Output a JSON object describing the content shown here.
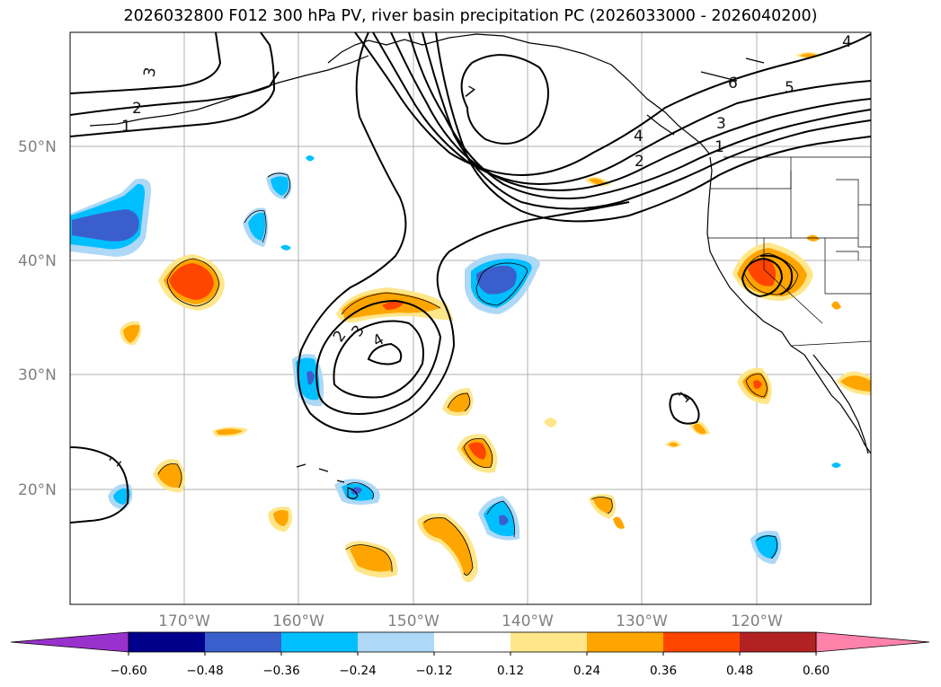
{
  "title": "2026032800 F012 300 hPa PV, river basin precipitation PC (2026033000 - 2026040200)",
  "lat_labels": [
    "50°N",
    "40°N",
    "30°N",
    "20°N"
  ],
  "lon_labels": [
    "170°W",
    "160°W",
    "150°W",
    "140°W",
    "130°W",
    "120°W"
  ],
  "colorbar": {
    "ticks": [
      "−0.60",
      "−0.48",
      "−0.36",
      "−0.24",
      "−0.12",
      "0.12",
      "0.24",
      "0.36",
      "0.48",
      "0.60"
    ],
    "colors": [
      "#9932cc",
      "#00008b",
      "#3a5fcd",
      "#00bfff",
      "#add8f6",
      "#ffffff",
      "#ffe68a",
      "#ffa500",
      "#ff4500",
      "#b22222",
      "#ff82ab"
    ]
  },
  "contour_labels": [
    "3",
    "2",
    "1",
    "7",
    "6",
    "5",
    "4",
    "3",
    "2",
    "1",
    "4",
    "2",
    "3",
    "4",
    "1",
    "1",
    "4"
  ],
  "palette": {
    "pos_light": "#ffe68a",
    "pos_mid": "#ffa500",
    "pos_strong": "#ff4500",
    "neg_pale": "#add8f6",
    "neg_light": "#00bfff",
    "neg_mid": "#3a5fcd"
  }
}
